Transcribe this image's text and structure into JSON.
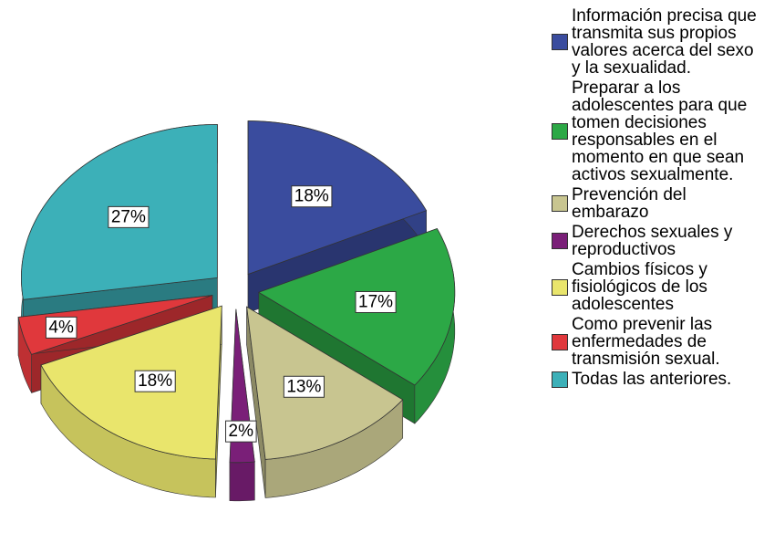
{
  "chart_data": {
    "type": "pie",
    "categories": [
      "Información precisa  que transmita sus propios valores acerca del sexo y la sexualidad.",
      "Preparar a los adolescentes para que tomen decisiones responsables en el momento en que sean activos sexualmente.",
      "Prevención del embarazo",
      "Derechos sexuales y reproductivos",
      "Cambios físicos y fisiológicos de los adolescentes",
      "Como prevenir las enfermedades de transmisión sexual.",
      "Todas las anteriores."
    ],
    "values": [
      18,
      17,
      13,
      2,
      18,
      4,
      27
    ],
    "value_labels": [
      "18%",
      "17%",
      "13%",
      "2%",
      "18%",
      "4%",
      "27%"
    ],
    "colors": [
      "#3a4c9e",
      "#2ca846",
      "#c8c590",
      "#7a1f78",
      "#e9e56c",
      "#e0383c",
      "#3cb0b8"
    ]
  }
}
